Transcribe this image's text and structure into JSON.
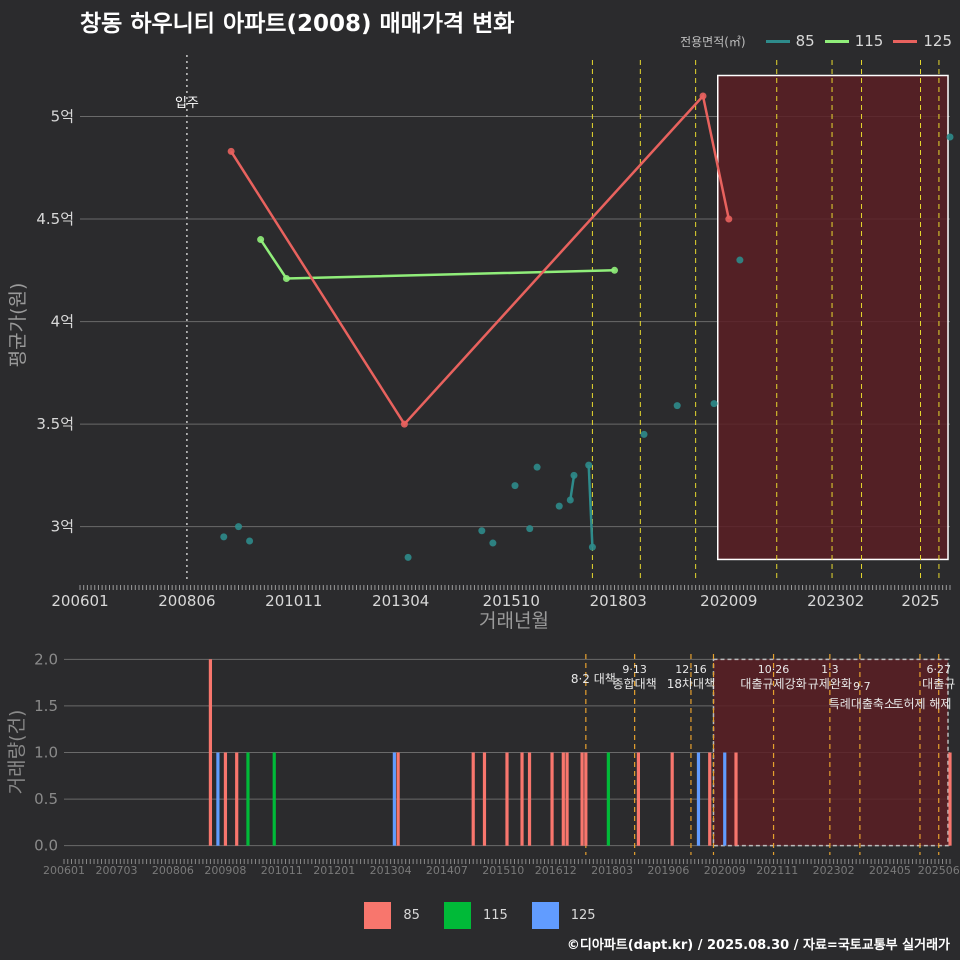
{
  "title": "창동 하우니티 아파트(2008) 매매가격 변화",
  "footer": "©디아파트(dapt.kr) / 2025.08.30 / 자료=국토교통부 실거래가",
  "legend_top": {
    "title": "전용면적(㎡)",
    "items": [
      {
        "label": "85",
        "color": "#2e8b8b"
      },
      {
        "label": "115",
        "color": "#90ee7a"
      },
      {
        "label": "125",
        "color": "#e8625e"
      }
    ]
  },
  "legend_bottom": {
    "items": [
      {
        "label": "85",
        "color": "#f8766d"
      },
      {
        "label": "115",
        "color": "#00ba38"
      },
      {
        "label": "125",
        "color": "#619cff"
      }
    ]
  },
  "colors": {
    "background": "#2b2b2d",
    "gridline": "#6a6a6a",
    "policy_line": "#e6d82e",
    "policy_line_bottom": "#e6a12e",
    "shade_fill": "#5a1f24"
  },
  "chart_data": [
    {
      "type": "line",
      "ylabel": "평균가(원)",
      "xlabel": "거래년월",
      "x_ticks": [
        "200601",
        "200806",
        "201011",
        "201304",
        "201510",
        "201803",
        "202009",
        "202302",
        "2025"
      ],
      "x_range": [
        "2006-01",
        "2025-09"
      ],
      "y_ticks": [
        {
          "value": 3.0,
          "label": "3억"
        },
        {
          "value": 3.5,
          "label": "3.5억"
        },
        {
          "value": 4.0,
          "label": "4억"
        },
        {
          "value": 4.5,
          "label": "4.5억"
        },
        {
          "value": 5.0,
          "label": "5억"
        }
      ],
      "ylim": [
        2.73,
        5.3
      ],
      "move_in": {
        "x": "2008-06",
        "label": "입주"
      },
      "policy_lines": [
        "2017-08",
        "2018-09",
        "2019-12",
        "2021-10",
        "2023-01",
        "2023-09",
        "2025-01",
        "2025-06"
      ],
      "shaded_range": {
        "from": "2020-06",
        "to": "2025-09",
        "y_from": 2.84,
        "y_to": 5.2
      },
      "series": [
        {
          "name": "85",
          "color": "#2e8b8b",
          "points": [
            {
              "x": "2009-04",
              "y": 2.95
            },
            {
              "x": "2009-08",
              "y": 3.0
            },
            {
              "x": "2009-11",
              "y": 2.93
            },
            {
              "x": "2013-06",
              "y": 2.85
            },
            {
              "x": "2015-02",
              "y": 2.98
            },
            {
              "x": "2015-05",
              "y": 2.92
            },
            {
              "x": "2015-11",
              "y": 3.2
            },
            {
              "x": "2016-03",
              "y": 2.99
            },
            {
              "x": "2016-05",
              "y": 3.29
            },
            {
              "x": "2016-11",
              "y": 3.1
            },
            {
              "x": "2017-02",
              "y": 3.13
            },
            {
              "x": "2017-03",
              "y": 3.25
            },
            {
              "x": "2017-07",
              "y": 3.3
            },
            {
              "x": "2017-08",
              "y": 2.9
            },
            {
              "x": "2018-10",
              "y": 3.45
            },
            {
              "x": "2019-07",
              "y": 3.59
            },
            {
              "x": "2020-05",
              "y": 3.6
            },
            {
              "x": "2020-12",
              "y": 4.3
            },
            {
              "x": "2025-09",
              "y": 4.9
            }
          ],
          "lines": [
            [
              {
                "x": "2017-02",
                "y": 3.13
              },
              {
                "x": "2017-03",
                "y": 3.25
              }
            ],
            [
              {
                "x": "2017-07",
                "y": 3.3
              },
              {
                "x": "2017-08",
                "y": 2.9
              }
            ]
          ]
        },
        {
          "name": "115",
          "color": "#90ee7a",
          "points": [
            {
              "x": "2010-02",
              "y": 4.4
            },
            {
              "x": "2010-09",
              "y": 4.21
            },
            {
              "x": "2018-02",
              "y": 4.25
            }
          ],
          "lines": [
            [
              {
                "x": "2010-02",
                "y": 4.4
              },
              {
                "x": "2010-09",
                "y": 4.21
              },
              {
                "x": "2018-02",
                "y": 4.25
              }
            ]
          ]
        },
        {
          "name": "125",
          "color": "#e8625e",
          "points": [
            {
              "x": "2009-06",
              "y": 4.83
            },
            {
              "x": "2013-05",
              "y": 3.5
            },
            {
              "x": "2020-02",
              "y": 5.1
            },
            {
              "x": "2020-09",
              "y": 4.5
            }
          ],
          "lines": [
            [
              {
                "x": "2009-06",
                "y": 4.83
              },
              {
                "x": "2013-05",
                "y": 3.5
              },
              {
                "x": "2020-02",
                "y": 5.1
              },
              {
                "x": "2020-09",
                "y": 4.5
              }
            ]
          ]
        }
      ]
    },
    {
      "type": "bar",
      "ylabel": "거래량(건)",
      "x_ticks": [
        "200601",
        "200703",
        "200806",
        "200908",
        "201011",
        "201201",
        "201304",
        "201407",
        "201510",
        "201612",
        "201803",
        "201906",
        "202009",
        "202111",
        "202302",
        "202405",
        "202506"
      ],
      "y_ticks": [
        {
          "value": 0.0,
          "label": "0.0"
        },
        {
          "value": 0.5,
          "label": "0.5"
        },
        {
          "value": 1.0,
          "label": "1.0"
        },
        {
          "value": 1.5,
          "label": "1.5"
        },
        {
          "value": 2.0,
          "label": "2.0"
        }
      ],
      "ylim": [
        -0.1,
        2.1
      ],
      "policy_lines": [
        "2017-08",
        "2018-09",
        "2019-12",
        "2020-06",
        "2021-10",
        "2023-01",
        "2023-09",
        "2025-01",
        "2025-06"
      ],
      "shaded_range": {
        "from": "2020-06",
        "to": "2025-09"
      },
      "annotations": [
        {
          "x": "2017-08",
          "lines": [
            "8·2 대책"
          ],
          "align": "end"
        },
        {
          "x": "2018-09",
          "lines": [
            "9·13",
            "종합대책"
          ],
          "align": "middle"
        },
        {
          "x": "2019-12",
          "lines": [
            "12·16",
            "18차대책"
          ],
          "align": "middle"
        },
        {
          "x": "2021-10",
          "lines": [
            "10·26",
            "대출규제강화"
          ],
          "align": "middle"
        },
        {
          "x": "2023-01",
          "lines": [
            "1·3",
            "규제완화"
          ],
          "align": "middle"
        },
        {
          "x": "2023-09",
          "lines": [
            "9·7",
            "특례대출축소"
          ],
          "align": "middle",
          "offset": 2
        },
        {
          "x": "2025-01",
          "lines": [
            "",
            "토허제 해제"
          ],
          "align": "middle",
          "offset": 2
        },
        {
          "x": "2025-06",
          "lines": [
            "6·27",
            "대출규"
          ],
          "align": "middle"
        }
      ],
      "series": [
        {
          "name": "85",
          "color": "#f8766d",
          "bars": [
            {
              "x": "2009-04",
              "y": 2
            },
            {
              "x": "2009-08",
              "y": 1
            },
            {
              "x": "2009-11",
              "y": 1
            },
            {
              "x": "2013-06",
              "y": 1
            },
            {
              "x": "2015-02",
              "y": 1
            },
            {
              "x": "2015-05",
              "y": 1
            },
            {
              "x": "2015-11",
              "y": 1
            },
            {
              "x": "2016-03",
              "y": 1
            },
            {
              "x": "2016-05",
              "y": 1
            },
            {
              "x": "2016-11",
              "y": 1
            },
            {
              "x": "2017-02",
              "y": 1
            },
            {
              "x": "2017-03",
              "y": 1
            },
            {
              "x": "2017-07",
              "y": 1
            },
            {
              "x": "2017-08",
              "y": 1
            },
            {
              "x": "2018-10",
              "y": 1
            },
            {
              "x": "2019-07",
              "y": 1
            },
            {
              "x": "2020-05",
              "y": 1
            },
            {
              "x": "2020-12",
              "y": 1
            },
            {
              "x": "2025-09",
              "y": 1
            }
          ]
        },
        {
          "name": "115",
          "color": "#00ba38",
          "bars": [
            {
              "x": "2010-02",
              "y": 1
            },
            {
              "x": "2010-09",
              "y": 1
            },
            {
              "x": "2018-02",
              "y": 1
            }
          ]
        },
        {
          "name": "125",
          "color": "#619cff",
          "bars": [
            {
              "x": "2009-06",
              "y": 1
            },
            {
              "x": "2013-05",
              "y": 1
            },
            {
              "x": "2020-02",
              "y": 1
            },
            {
              "x": "2020-09",
              "y": 1
            }
          ]
        }
      ]
    }
  ]
}
